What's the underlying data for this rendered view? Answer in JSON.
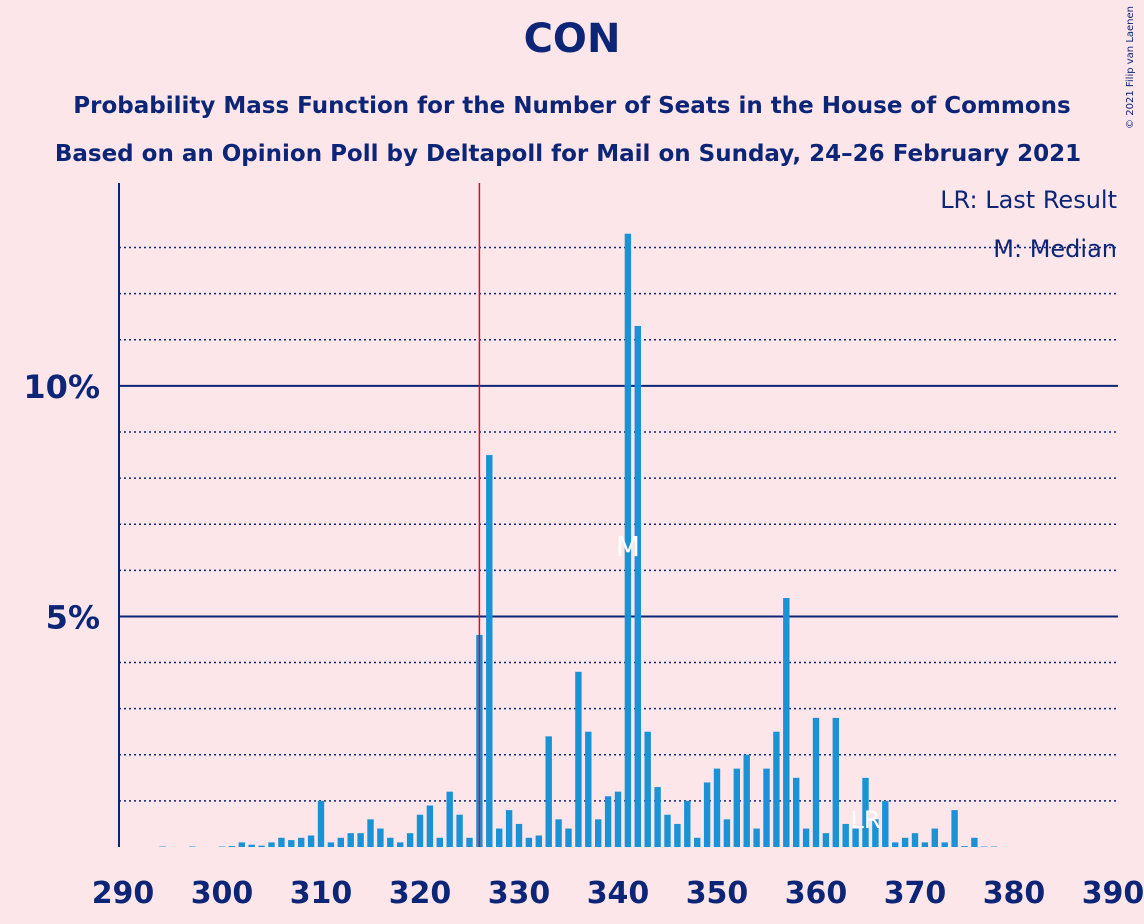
{
  "chart_data": {
    "type": "bar",
    "title": "CON",
    "subtitle": "Probability Mass Function for the Number of Seats in the House of Commons",
    "subtitle2": "Based on an Opinion Poll by Deltapoll for Mail on Sunday, 24–26 February 2021",
    "copyright": "© 2021 Filip van Laenen",
    "legend": [
      "LR: Last Result",
      "M: Median"
    ],
    "color": "#1a93d6",
    "x": [
      290,
      291,
      292,
      293,
      294,
      295,
      296,
      297,
      298,
      299,
      300,
      301,
      302,
      303,
      304,
      305,
      306,
      307,
      308,
      309,
      310,
      311,
      312,
      313,
      314,
      315,
      316,
      317,
      318,
      319,
      320,
      321,
      322,
      323,
      324,
      325,
      326,
      327,
      328,
      329,
      330,
      331,
      332,
      333,
      334,
      335,
      336,
      337,
      338,
      339,
      340,
      341,
      342,
      343,
      344,
      345,
      346,
      347,
      348,
      349,
      350,
      351,
      352,
      353,
      354,
      355,
      356,
      357,
      358,
      359,
      360,
      361,
      362,
      363,
      364,
      365,
      366,
      367,
      368,
      369,
      370,
      371,
      372,
      373,
      374,
      375,
      376,
      377,
      378,
      379,
      380,
      381,
      382,
      383,
      384,
      385,
      386,
      387,
      388,
      389,
      390
    ],
    "values": [
      0,
      0,
      0,
      0,
      0.01,
      0,
      0,
      0.01,
      0,
      0,
      0.01,
      0.02,
      0.1,
      0.05,
      0.03,
      0.1,
      0.2,
      0.15,
      0.2,
      0.25,
      1.0,
      0.1,
      0.2,
      0.3,
      0.3,
      0.6,
      0.4,
      0.2,
      0.1,
      0.3,
      0.7,
      0.9,
      0.2,
      1.2,
      0.7,
      0.2,
      4.6,
      8.5,
      0.4,
      0.8,
      0.5,
      0.2,
      0.25,
      2.4,
      0.6,
      0.4,
      3.8,
      2.5,
      0.6,
      1.1,
      1.2,
      13.3,
      11.3,
      2.5,
      1.3,
      0.7,
      0.5,
      1.0,
      0.2,
      1.4,
      1.7,
      0.6,
      1.7,
      2.0,
      0.4,
      1.7,
      2.5,
      5.4,
      1.5,
      0.4,
      2.8,
      0.3,
      2.8,
      0.5,
      0.4,
      1.5,
      0.6,
      1.0,
      0.1,
      0.2,
      0.3,
      0.1,
      0.4,
      0.1,
      0.8,
      0.02,
      0.2,
      0.01,
      0.01,
      0,
      0,
      0,
      0,
      0,
      0,
      0,
      0,
      0,
      0,
      0,
      0
    ],
    "xlim": [
      290,
      390
    ],
    "xticks": [
      290,
      300,
      310,
      320,
      330,
      340,
      350,
      360,
      370,
      380,
      390
    ],
    "ylim": [
      0,
      14.4
    ],
    "yticks": [
      {
        "value": 5,
        "label": "5%"
      },
      {
        "value": 10,
        "label": "10%"
      }
    ],
    "minor_yticks": [
      1,
      2,
      3,
      4,
      6,
      7,
      8,
      9,
      11,
      12,
      13
    ],
    "majority": 326,
    "median": {
      "seats": 341,
      "label": "M"
    },
    "last_result": {
      "seats": 365,
      "label": "LR"
    }
  }
}
